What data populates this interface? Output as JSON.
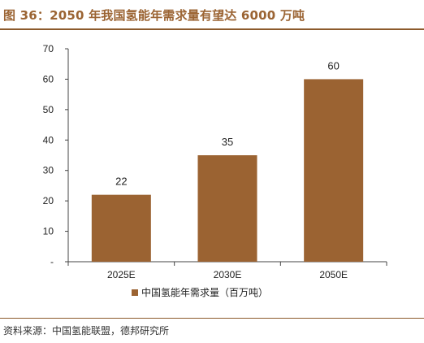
{
  "title": "图 36：2050 年我国氢能年需求量有望达 6000 万吨",
  "source": "资料来源：中国氢能联盟，德邦研究所",
  "colors": {
    "bar": "#9b6332",
    "accent": "#9b6433",
    "axis": "#444444"
  },
  "chart_data": {
    "type": "bar",
    "categories": [
      "2025E",
      "2030E",
      "2050E"
    ],
    "series": [
      {
        "name": "中国氢能年需求量（百万吨）",
        "values": [
          22,
          35,
          60
        ]
      }
    ],
    "yticks": [
      0,
      10,
      20,
      30,
      40,
      50,
      60,
      70
    ],
    "ytick_labels": [
      "-",
      "10",
      "20",
      "30",
      "40",
      "50",
      "60",
      "70"
    ],
    "ylim": [
      0,
      70
    ],
    "xlabel": "",
    "ylabel": "",
    "grid": false,
    "legend": "bottom-center",
    "data_labels": true
  }
}
